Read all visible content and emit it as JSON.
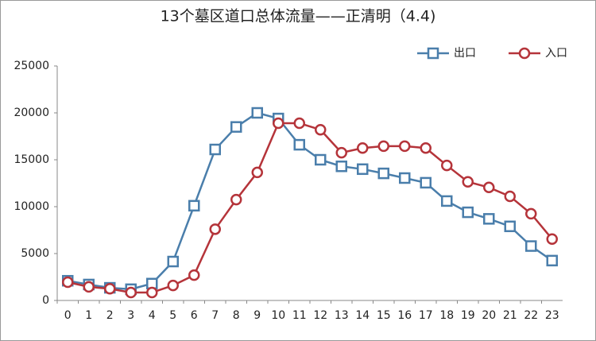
{
  "chart_data": {
    "type": "line",
    "title": "13个墓区道口总体流量——正清明（4.4)",
    "categories": [
      "0",
      "1",
      "2",
      "3",
      "4",
      "5",
      "6",
      "7",
      "8",
      "9",
      "10",
      "11",
      "12",
      "13",
      "14",
      "15",
      "16",
      "17",
      "18",
      "19",
      "20",
      "21",
      "22",
      "23"
    ],
    "series": [
      {
        "name": "出口",
        "color": "#4a7eab",
        "marker": "square",
        "values": [
          2100,
          1700,
          1350,
          1200,
          1800,
          4150,
          10100,
          16100,
          18500,
          20000,
          19400,
          16600,
          15000,
          14300,
          14000,
          13550,
          13050,
          12550,
          10600,
          9400,
          8700,
          7900,
          5800,
          4250
        ]
      },
      {
        "name": "入口",
        "color": "#b5343a",
        "marker": "circle",
        "values": [
          1950,
          1450,
          1250,
          850,
          850,
          1600,
          2700,
          7600,
          10750,
          13650,
          18900,
          18900,
          18200,
          15750,
          16250,
          16450,
          16450,
          16250,
          14400,
          12650,
          12050,
          11100,
          9250,
          6550
        ]
      }
    ],
    "ylim": [
      0,
      25000
    ],
    "yticks": [
      0,
      5000,
      10000,
      15000,
      20000,
      25000
    ],
    "grid": false,
    "legend": "top-right"
  }
}
